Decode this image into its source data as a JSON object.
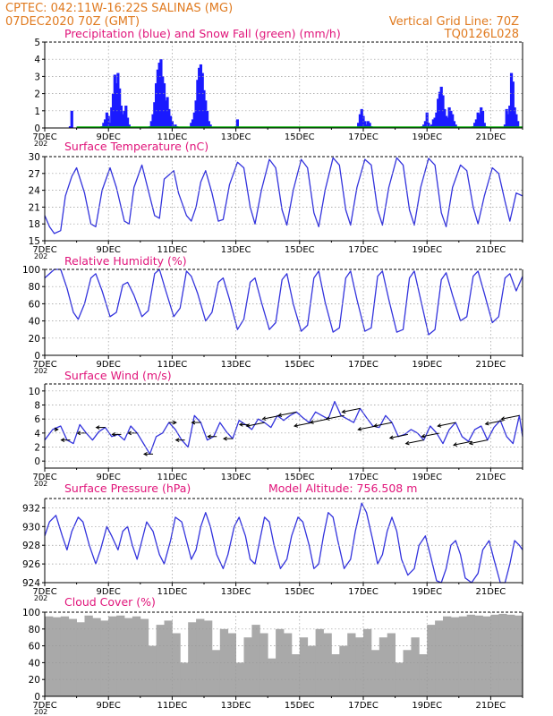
{
  "header": {
    "left_line1": "CPTEC:    042:11W-16:22S   SALINAS (MG)",
    "left_line2": "07DEC2020 70Z (GMT)",
    "right_line1": "Vertical Grid Line: 70Z",
    "right_line2": "TQ0126L028"
  },
  "colors": {
    "header": "#e07a1f",
    "panel_title": "#e0147a",
    "precip": "#1a1aff",
    "snow": "#00b000",
    "line": "#3333dd",
    "cloud": "#a9a9a9",
    "arrow": "#000000",
    "grid": "#999999"
  },
  "x_axis": {
    "start_day": 7,
    "end_day": 22,
    "tick_days": [
      7,
      9,
      11,
      13,
      15,
      17,
      19,
      21
    ],
    "tick_labels": [
      "7DEC",
      "9DEC",
      "11DEC",
      "13DEC",
      "15DEC",
      "17DEC",
      "19DEC",
      "21DEC"
    ],
    "year_label": "202"
  },
  "chart_data": [
    {
      "type": "bar",
      "title": "Precipitation (blue) and Snow Fall (green) (mm/h)",
      "ylim": [
        0,
        5
      ],
      "yticks": [
        0,
        1,
        2,
        3,
        4,
        5
      ],
      "series": [
        {
          "x": [
            7.8,
            7.85,
            8.8,
            8.85,
            8.9,
            8.95,
            9.0,
            9.05,
            9.1,
            9.15,
            9.2,
            9.25,
            9.3,
            9.35,
            9.4,
            9.45,
            9.5,
            9.55,
            9.6,
            9.65,
            10.3,
            10.35,
            10.4,
            10.45,
            10.5,
            10.55,
            10.6,
            10.65,
            10.7,
            10.75,
            10.8,
            10.85,
            10.9,
            10.95,
            11.0,
            11.05,
            11.1,
            11.15,
            11.6,
            11.65,
            11.7,
            11.75,
            11.8,
            11.85,
            11.9,
            11.95,
            12.0,
            12.05,
            12.1,
            12.15,
            12.2,
            13.0,
            13.05,
            16.85,
            16.9,
            16.95,
            17.0,
            17.05,
            17.1,
            17.15,
            17.2,
            17.25,
            18.85,
            18.9,
            18.95,
            19.0,
            19.05,
            19.1,
            19.15,
            19.2,
            19.25,
            19.3,
            19.35,
            19.4,
            19.45,
            19.5,
            19.55,
            19.6,
            19.65,
            19.7,
            19.75,
            19.8,
            19.85,
            19.9,
            20.45,
            20.5,
            20.55,
            20.6,
            20.65,
            20.7,
            20.75,
            20.8,
            20.85,
            21.45,
            21.5,
            21.55,
            21.6,
            21.65,
            21.7,
            21.75,
            21.8,
            21.85
          ],
          "values": [
            0.1,
            1.0,
            0.1,
            0.3,
            0.5,
            0.9,
            0.7,
            0.3,
            1.2,
            2.0,
            3.1,
            2.6,
            3.2,
            2.3,
            1.3,
            0.8,
            1.0,
            1.3,
            0.6,
            0.2,
            0.1,
            0.4,
            0.8,
            1.5,
            2.6,
            3.4,
            3.8,
            4.0,
            3.0,
            2.6,
            1.6,
            1.8,
            1.1,
            0.7,
            0.4,
            0.1,
            0.2,
            0.1,
            0.3,
            0.5,
            0.9,
            1.6,
            2.8,
            3.5,
            3.7,
            3.2,
            2.2,
            1.6,
            1.0,
            0.4,
            0.2,
            0.1,
            0.5,
            0.3,
            0.8,
            1.1,
            0.7,
            0.4,
            0.2,
            0.4,
            0.3,
            0.1,
            0.1,
            0.2,
            0.4,
            0.9,
            0.3,
            0.1,
            0.2,
            0.5,
            0.6,
            0.9,
            1.7,
            2.1,
            2.4,
            1.9,
            1.1,
            0.7,
            0.6,
            1.2,
            1.0,
            0.8,
            0.4,
            0.2,
            0.1,
            0.3,
            0.5,
            0.9,
            0.8,
            1.2,
            1.0,
            0.3,
            0.1,
            0.2,
            1.1,
            0.8,
            1.3,
            3.2,
            2.7,
            1.2,
            0.8,
            0.4
          ]
        },
        {
          "x": [
            8.0,
            10.0,
            12.0,
            14.0,
            16.0,
            18.0,
            20.0,
            22.0
          ],
          "values": [
            0.05,
            0.05,
            0.05,
            0.05,
            0.05,
            0.05,
            0.05,
            0.05
          ]
        }
      ]
    },
    {
      "type": "line",
      "title": "Surface Temperature (nC)",
      "ylim": [
        15,
        30
      ],
      "yticks": [
        15,
        18,
        21,
        24,
        27,
        30
      ],
      "x": [
        7.0,
        7.15,
        7.3,
        7.5,
        7.65,
        7.85,
        8.0,
        8.25,
        8.45,
        8.6,
        8.8,
        9.05,
        9.25,
        9.5,
        9.65,
        9.8,
        10.05,
        10.25,
        10.45,
        10.6,
        10.75,
        11.05,
        11.2,
        11.45,
        11.6,
        11.75,
        11.9,
        12.05,
        12.25,
        12.45,
        12.6,
        12.8,
        13.05,
        13.25,
        13.45,
        13.6,
        13.8,
        14.05,
        14.25,
        14.45,
        14.6,
        14.8,
        15.05,
        15.25,
        15.45,
        15.6,
        15.8,
        16.05,
        16.25,
        16.45,
        16.6,
        16.8,
        17.05,
        17.25,
        17.45,
        17.6,
        17.8,
        18.05,
        18.25,
        18.45,
        18.6,
        18.8,
        19.05,
        19.25,
        19.45,
        19.6,
        19.8,
        20.05,
        20.25,
        20.45,
        20.6,
        20.8,
        21.05,
        21.25,
        21.45,
        21.6,
        21.8,
        22.0
      ],
      "values": [
        19.5,
        17.5,
        16.3,
        16.8,
        23.0,
        26.5,
        28.0,
        23.5,
        18.0,
        17.5,
        24.0,
        28.0,
        24.5,
        18.5,
        18.0,
        24.5,
        28.5,
        24.0,
        19.5,
        19.0,
        26.0,
        27.5,
        23.5,
        19.5,
        18.5,
        21.0,
        25.5,
        27.5,
        23.5,
        18.5,
        18.8,
        25.0,
        29.0,
        28.0,
        21.0,
        18.0,
        24.0,
        29.5,
        28.0,
        20.5,
        17.8,
        24.0,
        29.5,
        28.0,
        20.0,
        17.5,
        24.0,
        29.8,
        28.5,
        20.5,
        17.8,
        24.5,
        29.5,
        28.5,
        20.5,
        17.8,
        24.5,
        29.8,
        28.5,
        20.5,
        17.8,
        24.5,
        29.7,
        28.5,
        20.0,
        17.5,
        24.5,
        28.5,
        27.5,
        21.0,
        18.0,
        23.0,
        28.0,
        27.0,
        22.0,
        18.5,
        23.5,
        23.0
      ]
    },
    {
      "type": "line",
      "title": "Relative Humidity (%)",
      "ylim": [
        0,
        100
      ],
      "yticks": [
        0,
        20,
        40,
        60,
        80,
        100
      ],
      "x": [
        7.0,
        7.3,
        7.5,
        7.7,
        7.9,
        8.05,
        8.25,
        8.45,
        8.6,
        8.8,
        9.05,
        9.25,
        9.45,
        9.6,
        9.8,
        10.05,
        10.25,
        10.45,
        10.6,
        10.8,
        11.05,
        11.25,
        11.45,
        11.6,
        11.8,
        12.05,
        12.25,
        12.45,
        12.6,
        12.8,
        13.05,
        13.25,
        13.45,
        13.6,
        13.8,
        14.05,
        14.25,
        14.45,
        14.6,
        14.8,
        15.05,
        15.25,
        15.45,
        15.6,
        15.8,
        16.05,
        16.25,
        16.45,
        16.6,
        16.8,
        17.05,
        17.25,
        17.45,
        17.6,
        17.8,
        18.05,
        18.25,
        18.45,
        18.6,
        18.8,
        19.05,
        19.25,
        19.45,
        19.6,
        19.8,
        20.05,
        20.25,
        20.45,
        20.6,
        20.8,
        21.05,
        21.25,
        21.45,
        21.6,
        21.8,
        22.0
      ],
      "values": [
        90,
        100,
        100,
        78,
        50,
        42,
        60,
        90,
        95,
        75,
        45,
        50,
        82,
        85,
        70,
        45,
        52,
        95,
        100,
        75,
        45,
        55,
        98,
        92,
        72,
        40,
        50,
        85,
        90,
        65,
        30,
        42,
        85,
        90,
        62,
        30,
        38,
        88,
        95,
        60,
        28,
        35,
        90,
        98,
        62,
        27,
        32,
        90,
        98,
        65,
        28,
        32,
        92,
        98,
        65,
        27,
        30,
        90,
        98,
        65,
        24,
        30,
        88,
        96,
        70,
        40,
        45,
        92,
        98,
        72,
        38,
        45,
        90,
        95,
        75,
        92
      ]
    },
    {
      "type": "line",
      "title": "Surface Wind (m/s)",
      "ylim": [
        -1,
        11
      ],
      "yticks": [
        0,
        2,
        4,
        6,
        8,
        10
      ],
      "x": [
        7.0,
        7.25,
        7.5,
        7.7,
        7.9,
        8.1,
        8.3,
        8.5,
        8.7,
        8.9,
        9.1,
        9.3,
        9.5,
        9.7,
        9.9,
        10.1,
        10.3,
        10.5,
        10.7,
        10.9,
        11.1,
        11.3,
        11.5,
        11.7,
        11.9,
        12.1,
        12.3,
        12.5,
        12.7,
        12.9,
        13.1,
        13.3,
        13.5,
        13.7,
        13.9,
        14.1,
        14.3,
        14.5,
        14.7,
        14.9,
        15.1,
        15.3,
        15.5,
        15.7,
        15.9,
        16.1,
        16.3,
        16.5,
        16.7,
        16.9,
        17.1,
        17.3,
        17.5,
        17.7,
        17.9,
        18.1,
        18.3,
        18.5,
        18.7,
        18.9,
        19.1,
        19.3,
        19.5,
        19.7,
        19.9,
        20.1,
        20.3,
        20.5,
        20.7,
        20.9,
        21.1,
        21.3,
        21.5,
        21.7,
        21.9,
        22.0
      ],
      "values": [
        3.0,
        4.5,
        5.0,
        3.0,
        2.5,
        5.2,
        4.0,
        3.0,
        4.2,
        4.8,
        3.5,
        3.8,
        3.0,
        5.0,
        4.0,
        2.5,
        1.0,
        3.5,
        4.0,
        5.5,
        4.5,
        3.0,
        2.0,
        6.5,
        5.5,
        3.0,
        3.5,
        5.5,
        4.2,
        3.2,
        5.8,
        5.2,
        4.5,
        6.0,
        5.5,
        4.8,
        6.5,
        5.8,
        6.5,
        7.0,
        6.2,
        5.5,
        7.0,
        6.5,
        6.0,
        8.5,
        6.5,
        6.0,
        5.5,
        7.5,
        6.2,
        5.0,
        4.8,
        6.5,
        5.5,
        3.5,
        3.8,
        4.5,
        4.0,
        3.0,
        5.0,
        4.0,
        2.5,
        4.5,
        5.5,
        3.5,
        2.8,
        4.5,
        5.0,
        3.0,
        4.8,
        5.8,
        3.5,
        2.5,
        6.5,
        3.5
      ],
      "vectors": {
        "x": [
          7.3,
          7.8,
          8.3,
          8.9,
          9.4,
          9.9,
          10.4,
          10.9,
          11.4,
          11.9,
          12.4,
          12.9,
          13.4,
          13.9,
          14.4,
          14.9,
          15.4,
          15.9,
          16.4,
          16.9,
          17.4,
          17.9,
          18.4,
          18.9,
          19.4,
          19.9,
          20.4,
          20.9,
          21.4,
          21.9
        ],
        "u": [
          1,
          -2.5,
          -2.5,
          -2.5,
          -2.5,
          -2.5,
          -2.5,
          2,
          -2.5,
          -2.5,
          -2.5,
          -2.5,
          -2.5,
          -5,
          -5,
          -5,
          -5,
          -5,
          -5,
          -5,
          -5,
          -5,
          -5,
          -5,
          -5,
          -5,
          -5,
          -5,
          -5,
          -5
        ],
        "v": [
          0,
          0,
          0,
          0,
          0,
          0,
          0,
          0,
          0,
          0,
          0,
          0,
          0,
          -1,
          -1,
          -1,
          -1,
          -1,
          -1,
          -1,
          -1,
          -1,
          -1,
          -1,
          -1,
          -1,
          -1,
          -1,
          -1,
          -1
        ]
      }
    },
    {
      "type": "line",
      "title": "Surface Pressure (hPa)",
      "subtitle": "Model Altitude: 756.508 m",
      "ylim": [
        924,
        933
      ],
      "yticks": [
        924,
        926,
        928,
        930,
        932
      ],
      "x": [
        7.0,
        7.15,
        7.35,
        7.55,
        7.7,
        7.85,
        8.05,
        8.2,
        8.4,
        8.6,
        8.75,
        8.95,
        9.1,
        9.3,
        9.45,
        9.6,
        9.75,
        9.9,
        10.05,
        10.2,
        10.4,
        10.6,
        10.75,
        10.95,
        11.1,
        11.3,
        11.45,
        11.6,
        11.75,
        11.9,
        12.05,
        12.2,
        12.4,
        12.6,
        12.75,
        12.95,
        13.1,
        13.3,
        13.45,
        13.6,
        13.75,
        13.9,
        14.05,
        14.2,
        14.4,
        14.6,
        14.75,
        14.95,
        15.1,
        15.3,
        15.45,
        15.6,
        15.75,
        15.9,
        16.05,
        16.2,
        16.4,
        16.6,
        16.75,
        16.95,
        17.1,
        17.3,
        17.45,
        17.6,
        17.75,
        17.9,
        18.05,
        18.2,
        18.4,
        18.6,
        18.75,
        18.95,
        19.1,
        19.3,
        19.45,
        19.6,
        19.75,
        19.9,
        20.05,
        20.2,
        20.4,
        20.6,
        20.75,
        20.95,
        21.1,
        21.3,
        21.45,
        21.6,
        21.75,
        21.9,
        22.0
      ],
      "values": [
        929.0,
        930.5,
        931.2,
        929.0,
        927.5,
        929.5,
        931.0,
        930.5,
        928.0,
        926.0,
        927.5,
        930.0,
        929.0,
        927.5,
        929.5,
        930.0,
        928.0,
        926.5,
        928.5,
        930.5,
        929.5,
        927.0,
        926.0,
        928.5,
        931.0,
        930.5,
        928.5,
        926.5,
        927.5,
        930.0,
        931.5,
        930.0,
        927.0,
        925.5,
        927.0,
        930.0,
        931.0,
        929.0,
        926.5,
        926.0,
        928.5,
        931.0,
        930.5,
        928.0,
        925.5,
        926.5,
        929.0,
        931.0,
        930.5,
        928.0,
        925.5,
        926.0,
        929.0,
        931.5,
        931.0,
        928.5,
        925.5,
        926.5,
        929.5,
        932.5,
        931.5,
        928.5,
        926.0,
        927.0,
        929.5,
        931.0,
        929.5,
        926.5,
        924.8,
        925.5,
        928.0,
        929.0,
        927.0,
        924.2,
        924.0,
        925.5,
        928.0,
        928.5,
        927.0,
        924.5,
        923.8,
        925.0,
        927.5,
        928.5,
        926.5,
        924.0,
        924.0,
        926.0,
        928.5,
        928.0,
        927.5
      ]
    },
    {
      "type": "bar",
      "title": "Cloud Cover (%)",
      "ylim": [
        0,
        100
      ],
      "yticks": [
        0,
        20,
        40,
        60,
        80,
        100
      ],
      "x": [
        7.0,
        7.25,
        7.5,
        7.75,
        8.0,
        8.25,
        8.5,
        8.75,
        9.0,
        9.25,
        9.5,
        9.75,
        10.0,
        10.25,
        10.5,
        10.75,
        11.0,
        11.25,
        11.5,
        11.75,
        12.0,
        12.25,
        12.5,
        12.75,
        13.0,
        13.25,
        13.5,
        13.75,
        14.0,
        14.25,
        14.5,
        14.75,
        15.0,
        15.25,
        15.5,
        15.75,
        16.0,
        16.25,
        16.5,
        16.75,
        17.0,
        17.25,
        17.5,
        17.75,
        18.0,
        18.25,
        18.5,
        18.75,
        19.0,
        19.25,
        19.5,
        19.75,
        20.0,
        20.25,
        20.5,
        20.75,
        21.0,
        21.25,
        21.5,
        21.75,
        22.0
      ],
      "values": [
        95,
        94,
        95,
        92,
        88,
        96,
        93,
        90,
        95,
        96,
        93,
        95,
        92,
        60,
        85,
        90,
        75,
        40,
        88,
        92,
        90,
        55,
        80,
        75,
        40,
        70,
        85,
        75,
        45,
        80,
        75,
        50,
        70,
        60,
        80,
        75,
        50,
        60,
        75,
        70,
        80,
        55,
        70,
        75,
        40,
        55,
        70,
        50,
        85,
        90,
        95,
        94,
        95,
        97,
        96,
        95,
        97,
        98,
        97,
        96,
        95
      ]
    }
  ]
}
